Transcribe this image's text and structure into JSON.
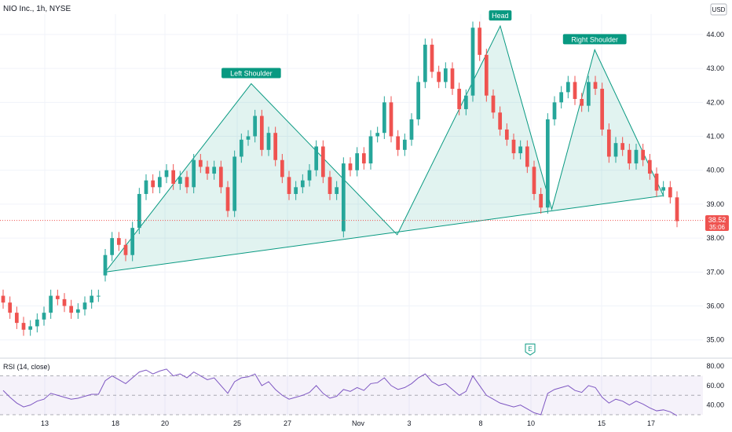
{
  "header": {
    "title": "NIO Inc., 1h, NYSE"
  },
  "currency": "USD",
  "last_price": {
    "value": "38.52",
    "countdown": "35:06"
  },
  "earnings_marker": "E",
  "colors": {
    "up": "#26a69a",
    "down": "#ef5350",
    "pattern": "#089981",
    "rsi": "#7e57c2"
  },
  "chart_data": [
    {
      "type": "candlestick",
      "title": "NIO Inc., 1h, NYSE",
      "ylim": [
        34.6,
        44.6
      ],
      "y_ticks": [
        "35.00",
        "36.00",
        "37.00",
        "38.00",
        "39.00",
        "40.00",
        "41.00",
        "42.00",
        "43.00",
        "44.00"
      ],
      "x_ticks": [
        "13",
        "18",
        "20",
        "25",
        "27",
        "Nov",
        "3",
        "8",
        "10",
        "15",
        "17"
      ],
      "patterns": [
        "Left Shoulder",
        "Head",
        "Right Shoulder"
      ],
      "pattern_points": [
        {
          "bar": 0,
          "y": 37.0
        },
        {
          "bar": 17,
          "y": 42.55,
          "label": "Left Shoulder"
        },
        {
          "bar": 34,
          "y": 38.1
        },
        {
          "bar": 46,
          "y": 44.25,
          "label": "Head"
        },
        {
          "bar": 52,
          "y": 38.85
        },
        {
          "bar": 57,
          "y": 43.55,
          "label": "Right Shoulder"
        },
        {
          "bar": 65,
          "y": 39.25
        }
      ],
      "neckline": [
        {
          "bar": 0,
          "y": 37.1
        },
        {
          "bar": 65,
          "y": 39.2
        }
      ],
      "candles_close": [
        36.1,
        35.8,
        35.5,
        35.3,
        35.4,
        35.6,
        35.8,
        36.3,
        36.2,
        36.0,
        35.8,
        35.9,
        36.1,
        36.3,
        36.3,
        37.5,
        38.0,
        37.8,
        37.5,
        38.3,
        39.3,
        39.7,
        39.5,
        39.8,
        40.0,
        39.6,
        39.8,
        39.5,
        40.3,
        40.1,
        39.9,
        40.1,
        39.5,
        38.8,
        40.4,
        40.9,
        41.0,
        41.6,
        40.6,
        41.1,
        40.3,
        39.8,
        39.3,
        39.5,
        39.7,
        40.0,
        40.7,
        39.8,
        39.3,
        39.5,
        40.2,
        40.0,
        40.5,
        40.2,
        41.0,
        41.1,
        42.0,
        41.0,
        40.6,
        40.9,
        41.5,
        42.6,
        43.7,
        42.9,
        42.6,
        43.0,
        42.4,
        41.8,
        42.2,
        44.2,
        43.4,
        42.2,
        41.7,
        41.2,
        40.9,
        40.5,
        40.7,
        40.1,
        39.3,
        38.9,
        41.5,
        42.0,
        42.3,
        42.6,
        42.1,
        41.9,
        42.6,
        42.4,
        41.2,
        40.4,
        40.8,
        40.6,
        40.2,
        40.6,
        40.3,
        39.9,
        39.4,
        39.5,
        39.2,
        38.5
      ],
      "candles_open": [
        36.3,
        36.1,
        35.8,
        35.5,
        35.3,
        35.4,
        35.6,
        35.8,
        36.3,
        36.2,
        36.0,
        35.8,
        35.9,
        36.1,
        36.3,
        36.9,
        37.5,
        38.0,
        37.8,
        37.5,
        38.3,
        39.3,
        39.7,
        39.5,
        39.8,
        40.0,
        39.6,
        39.8,
        39.5,
        40.3,
        40.1,
        39.9,
        40.1,
        39.5,
        38.8,
        40.4,
        40.9,
        41.0,
        41.6,
        40.6,
        41.1,
        40.3,
        39.8,
        39.3,
        39.5,
        39.7,
        40.0,
        40.7,
        39.8,
        39.3,
        38.2,
        40.2,
        40.0,
        40.5,
        40.2,
        41.0,
        41.1,
        42.0,
        41.0,
        40.6,
        40.9,
        41.5,
        42.6,
        43.7,
        42.9,
        42.6,
        43.0,
        42.4,
        41.8,
        42.2,
        44.2,
        43.4,
        42.2,
        41.7,
        41.2,
        40.9,
        40.5,
        40.7,
        40.1,
        39.3,
        38.9,
        41.5,
        42.0,
        42.3,
        42.6,
        42.1,
        41.9,
        42.6,
        42.4,
        41.2,
        40.4,
        40.8,
        40.6,
        40.2,
        40.6,
        40.3,
        39.9,
        39.4,
        39.5,
        39.2
      ],
      "rsi": {
        "title": "RSI (14, close)",
        "ylim": [
          30,
          85
        ],
        "y_ticks": [
          "40.00",
          "60.00",
          "80.00"
        ],
        "band": [
          30,
          70
        ],
        "values": [
          55,
          48,
          42,
          38,
          40,
          44,
          46,
          52,
          50,
          48,
          46,
          47,
          49,
          51,
          51,
          65,
          70,
          66,
          62,
          68,
          74,
          76,
          72,
          75,
          77,
          70,
          72,
          68,
          74,
          70,
          66,
          68,
          60,
          52,
          64,
          68,
          69,
          72,
          60,
          64,
          56,
          50,
          46,
          48,
          50,
          53,
          60,
          52,
          47,
          49,
          56,
          54,
          58,
          55,
          62,
          63,
          68,
          60,
          56,
          58,
          62,
          68,
          72,
          64,
          60,
          62,
          56,
          50,
          54,
          70,
          60,
          50,
          46,
          42,
          40,
          38,
          40,
          36,
          32,
          30,
          52,
          56,
          58,
          60,
          55,
          53,
          60,
          58,
          48,
          42,
          46,
          44,
          40,
          44,
          41,
          37,
          34,
          35,
          33,
          29
        ]
      }
    }
  ]
}
